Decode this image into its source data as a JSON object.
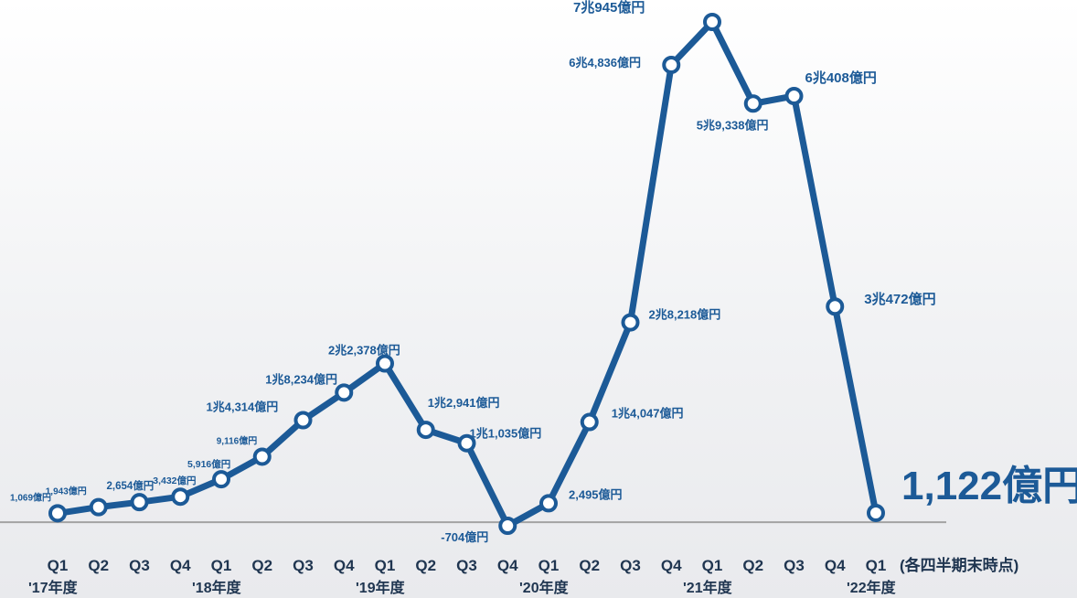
{
  "chart_data": {
    "type": "line",
    "x": [
      "Q1",
      "Q2",
      "Q3",
      "Q4",
      "Q1",
      "Q2",
      "Q3",
      "Q4",
      "Q1",
      "Q2",
      "Q3",
      "Q4",
      "Q1",
      "Q2",
      "Q3",
      "Q4",
      "Q1",
      "Q2",
      "Q3",
      "Q4",
      "Q1"
    ],
    "values": [
      1069,
      1943,
      2654,
      3432,
      5916,
      9116,
      14314,
      18234,
      22378,
      12941,
      11035,
      -704,
      2495,
      14047,
      28218,
      64836,
      70945,
      59338,
      60408,
      30472,
      1122
    ],
    "point_labels": [
      "1,069億円",
      "1,943億円",
      "2,654億円",
      "3,432億円",
      "5,916億円",
      "9,116億円",
      "1兆4,314億円",
      "1兆8,234億円",
      "2兆2,378億円",
      "1兆2,941億円",
      "1兆1,035億円",
      "-704億円",
      "2,495億円",
      "1兆4,047億円",
      "2兆8,218億円",
      "6兆4,836億円",
      "7兆945億円",
      "5兆9,338億円",
      "6兆408億円",
      "3兆472億円",
      "1,122億円"
    ],
    "fiscal_years": [
      "'17年度",
      "'18年度",
      "'19年度",
      "'20年度",
      "'21年度",
      "'22年度"
    ],
    "x_note": "(各四半期末時点)",
    "ylim": [
      -704,
      70945
    ],
    "grid": false,
    "colors": {
      "line": "#1c5a97",
      "marker_fill": "#ffffff",
      "baseline": "#a3a3a3",
      "axis_text": "#1f3550"
    }
  }
}
